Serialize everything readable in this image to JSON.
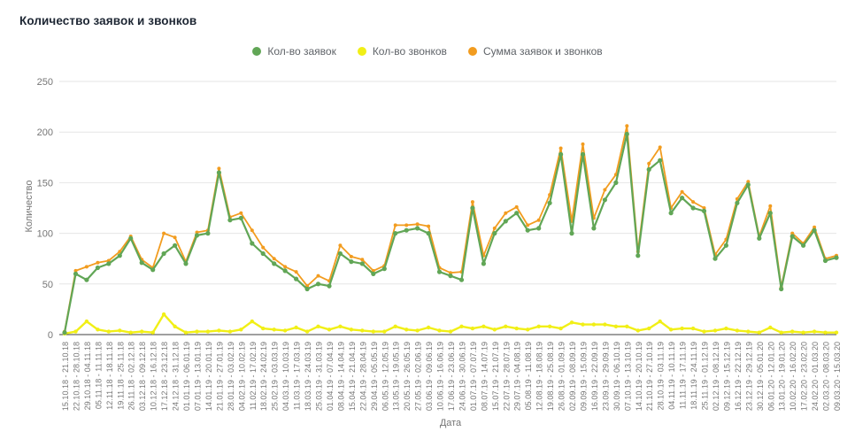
{
  "header": {
    "title": "Количество заявок и звонков"
  },
  "chart_data": {
    "type": "line",
    "title": "Количество заявок и звонков",
    "xlabel": "Дата",
    "ylabel": "Количество",
    "ylim": [
      0,
      250
    ],
    "yticks": [
      0,
      50,
      100,
      150,
      200,
      250
    ],
    "grid": true,
    "legend_position": "top",
    "categories": [
      "15.10.18 - 21.10.18",
      "22.10.18 - 28.10.18",
      "29.10.18 - 04.11.18",
      "05.11.18 - 11.11.18",
      "12.11.18 - 18.11.18",
      "19.11.18 - 25.11.18",
      "26.11.18 - 02.12.18",
      "03.12.18 - 09.12.18",
      "10.12.18 - 16.12.18",
      "17.12.18 - 23.12.18",
      "24.12.18 - 31.12.18",
      "01.01.19 - 06.01.19",
      "07.01.19 - 13.01.19",
      "14.01.19 - 20.01.19",
      "21.01.19 - 27.01.19",
      "28.01.19 - 03.02.19",
      "04.02.19 - 10.02.19",
      "11.02.19 - 17.02.19",
      "18.02.19 - 24.02.19",
      "25.02.19 - 03.03.19",
      "04.03.19 - 10.03.19",
      "11.03.19 - 17.03.19",
      "18.03.19 - 24.03.19",
      "25.03.19 - 31.03.19",
      "01.04.19 - 07.04.19",
      "08.04.19 - 14.04.19",
      "15.04.19 - 21.04.19",
      "22.04.19 - 28.04.19",
      "29.04.19 - 05.05.19",
      "06.05.19 - 12.05.19",
      "13.05.19 - 19.05.19",
      "20.05.19 - 26.05.19",
      "27.05.19 - 02.06.19",
      "03.06.19 - 09.06.19",
      "10.06.19 - 16.06.19",
      "17.06.19 - 23.06.19",
      "24.06.19 - 30.06.19",
      "01.07.19 - 07.07.19",
      "08.07.19 - 14.07.19",
      "15.07.19 - 21.07.19",
      "22.07.19 - 28.07.19",
      "29.07.19 - 04.08.19",
      "05.08.19 - 11.08.19",
      "12.08.19 - 18.08.19",
      "19.08.19 - 25.08.19",
      "26.08.19 - 01.09.19",
      "02.09.19 - 08.09.19",
      "09.09.19 - 15.09.19",
      "16.09.19 - 22.09.19",
      "23.09.19 - 29.09.19",
      "30.09.19 - 06.10.19",
      "07.10.19 - 13.10.19",
      "14.10.19 - 20.10.19",
      "21.10.19 - 27.10.19",
      "28.10.19 - 03.11.19",
      "04.11.19 - 10.11.19",
      "11.11.19 - 17.11.19",
      "18.11.19 - 24.11.19",
      "25.11.19 - 01.12.19",
      "02.12.19 - 08.12.19",
      "09.12.19 - 15.12.19",
      "16.12.19 - 22.12.19",
      "23.12.19 - 29.12.19",
      "30.12.19 - 05.01.20",
      "06.01.20 - 12.01.20",
      "13.01.20 - 19.01.20",
      "10.02.20 - 16.02.20",
      "17.02.20 - 23.02.20",
      "24.02.20 - 01.03.20",
      "02.03.20 - 08.03.20",
      "09.03.20 - 15.03.20"
    ],
    "series": [
      {
        "key": "requests",
        "name": "Кол-во заявок",
        "color": "#61a656",
        "values": [
          2,
          60,
          54,
          66,
          70,
          78,
          95,
          71,
          64,
          80,
          88,
          70,
          98,
          100,
          160,
          113,
          115,
          90,
          80,
          70,
          63,
          55,
          45,
          50,
          48,
          80,
          72,
          70,
          60,
          65,
          100,
          103,
          105,
          100,
          62,
          58,
          54,
          125,
          70,
          100,
          112,
          120,
          103,
          105,
          130,
          178,
          100,
          178,
          105,
          133,
          150,
          198,
          78,
          163,
          172,
          120,
          135,
          125,
          122,
          75,
          88,
          130,
          148,
          95,
          120,
          45,
          97,
          88,
          103,
          73,
          76
        ]
      },
      {
        "key": "calls",
        "name": "Кол-во звонков",
        "color": "#f1ef16",
        "values": [
          1,
          3,
          13,
          5,
          3,
          4,
          2,
          3,
          2,
          20,
          8,
          2,
          3,
          3,
          4,
          3,
          5,
          13,
          6,
          5,
          4,
          7,
          3,
          8,
          5,
          8,
          5,
          4,
          3,
          3,
          8,
          5,
          4,
          7,
          4,
          3,
          8,
          6,
          8,
          5,
          8,
          6,
          5,
          8,
          8,
          6,
          12,
          10,
          10,
          10,
          8,
          8,
          4,
          6,
          13,
          5,
          6,
          6,
          3,
          4,
          6,
          4,
          3,
          2,
          7,
          2,
          3,
          2,
          3,
          2,
          2
        ]
      },
      {
        "key": "sum",
        "name": "Сумма заявок и звонков",
        "color": "#f29c1f",
        "values": [
          3,
          63,
          67,
          71,
          73,
          82,
          97,
          74,
          66,
          100,
          96,
          72,
          101,
          103,
          164,
          116,
          120,
          103,
          86,
          75,
          67,
          62,
          48,
          58,
          53,
          88,
          77,
          74,
          63,
          68,
          108,
          108,
          109,
          107,
          66,
          61,
          62,
          131,
          78,
          105,
          120,
          126,
          108,
          113,
          138,
          184,
          112,
          188,
          115,
          143,
          158,
          206,
          82,
          169,
          185,
          125,
          141,
          131,
          125,
          79,
          94,
          134,
          151,
          97,
          127,
          47,
          100,
          90,
          106,
          75,
          78
        ]
      }
    ]
  }
}
